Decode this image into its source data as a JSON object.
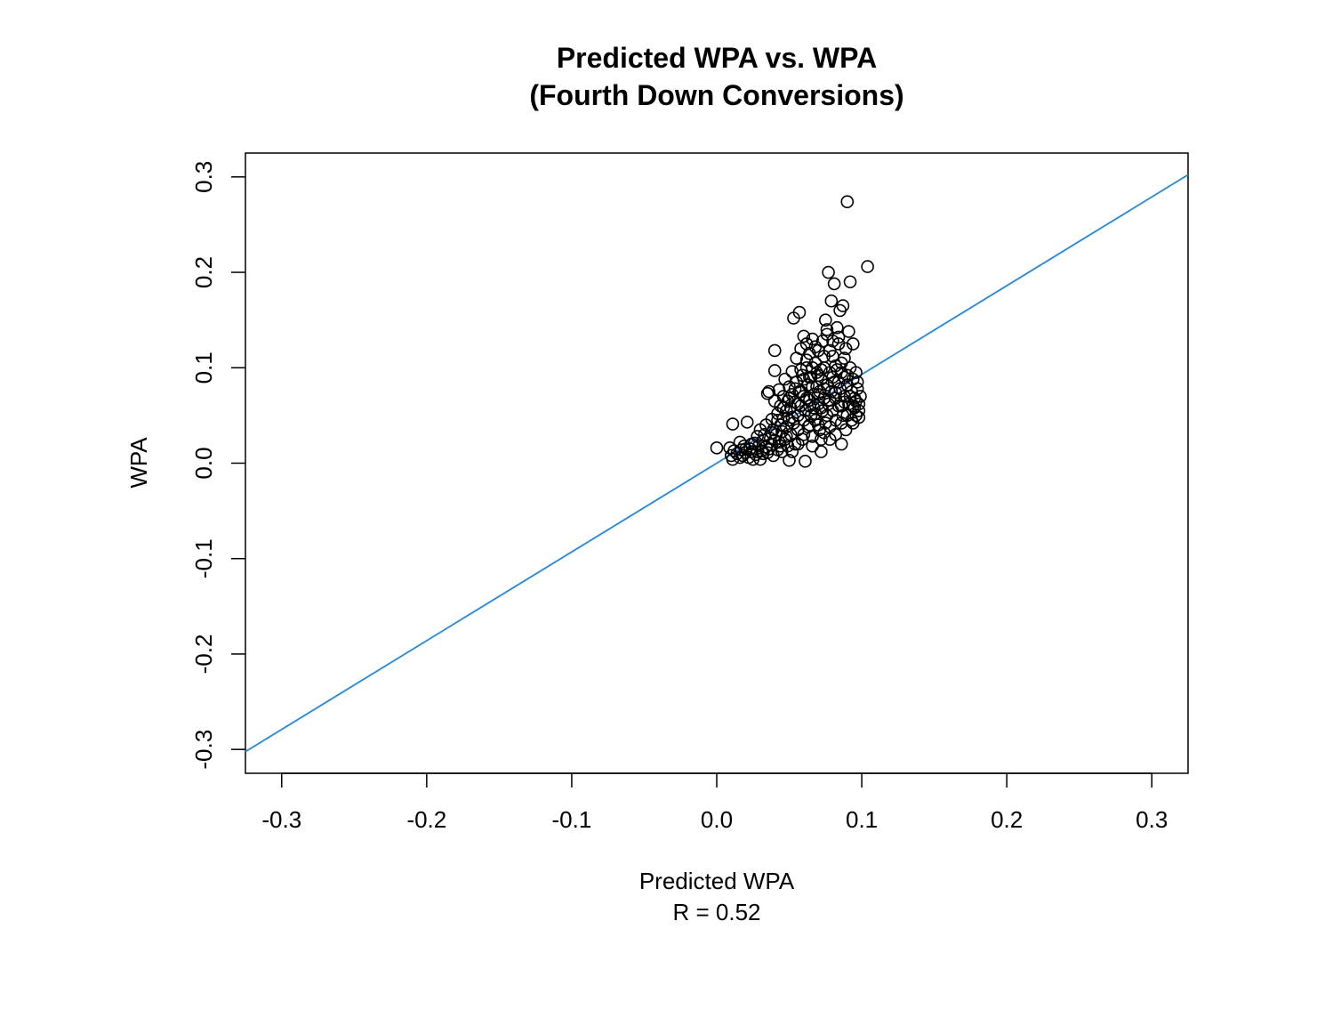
{
  "chart_data": {
    "type": "scatter",
    "title_line1": "Predicted WPA vs. WPA",
    "title_line2": "(Fourth Down Conversions)",
    "xlabel": "Predicted WPA",
    "xlabel_sub": "R = 0.52",
    "ylabel": "WPA",
    "xlim": [
      -0.325,
      0.325
    ],
    "ylim": [
      -0.325,
      0.325
    ],
    "xticks": [
      -0.3,
      -0.2,
      -0.1,
      0.0,
      0.1,
      0.2,
      0.3
    ],
    "yticks": [
      -0.3,
      -0.2,
      -0.1,
      0.0,
      0.1,
      0.2,
      0.3
    ],
    "xtick_labels": [
      "-0.3",
      "-0.2",
      "-0.1",
      "0.0",
      "0.1",
      "0.2",
      "0.3"
    ],
    "ytick_labels": [
      "-0.3",
      "-0.2",
      "-0.1",
      "0.0",
      "0.1",
      "0.2",
      "0.3"
    ],
    "reference_line": {
      "intercept": 0.0,
      "slope": 0.93,
      "color": "#1E88E5"
    },
    "point_color": "#000000",
    "points": [
      [
        0.0,
        0.016
      ],
      [
        0.009,
        0.016
      ],
      [
        0.01,
        0.008
      ],
      [
        0.011,
        0.004
      ],
      [
        0.011,
        0.041
      ],
      [
        0.012,
        0.013
      ],
      [
        0.014,
        0.01
      ],
      [
        0.016,
        0.022
      ],
      [
        0.017,
        0.014
      ],
      [
        0.018,
        0.008
      ],
      [
        0.019,
        0.018
      ],
      [
        0.02,
        0.011
      ],
      [
        0.021,
        0.043
      ],
      [
        0.022,
        0.006
      ],
      [
        0.023,
        0.015
      ],
      [
        0.024,
        0.012
      ],
      [
        0.025,
        0.004
      ],
      [
        0.026,
        0.021
      ],
      [
        0.027,
        0.009
      ],
      [
        0.028,
        0.028
      ],
      [
        0.029,
        0.018
      ],
      [
        0.03,
        0.004
      ],
      [
        0.03,
        0.035
      ],
      [
        0.031,
        0.013
      ],
      [
        0.032,
        0.024
      ],
      [
        0.033,
        0.03
      ],
      [
        0.034,
        0.017
      ],
      [
        0.034,
        0.04
      ],
      [
        0.035,
        0.011
      ],
      [
        0.035,
        0.073
      ],
      [
        0.036,
        0.075
      ],
      [
        0.037,
        0.026
      ],
      [
        0.038,
        0.019
      ],
      [
        0.038,
        0.046
      ],
      [
        0.039,
        0.008
      ],
      [
        0.039,
        0.035
      ],
      [
        0.04,
        0.065
      ],
      [
        0.04,
        0.097
      ],
      [
        0.04,
        0.118
      ],
      [
        0.041,
        0.03
      ],
      [
        0.042,
        0.014
      ],
      [
        0.042,
        0.052
      ],
      [
        0.043,
        0.022
      ],
      [
        0.043,
        0.077
      ],
      [
        0.044,
        0.04
      ],
      [
        0.044,
        0.06
      ],
      [
        0.045,
        0.012
      ],
      [
        0.045,
        0.033
      ],
      [
        0.046,
        0.047
      ],
      [
        0.046,
        0.07
      ],
      [
        0.047,
        0.025
      ],
      [
        0.047,
        0.088
      ],
      [
        0.048,
        0.055
      ],
      [
        0.048,
        0.038
      ],
      [
        0.049,
        0.018
      ],
      [
        0.049,
        0.065
      ],
      [
        0.05,
        0.045
      ],
      [
        0.05,
        0.08
      ],
      [
        0.05,
        0.003
      ],
      [
        0.051,
        0.03
      ],
      [
        0.051,
        0.058
      ],
      [
        0.052,
        0.096
      ],
      [
        0.052,
        0.072
      ],
      [
        0.053,
        0.152
      ],
      [
        0.053,
        0.042
      ],
      [
        0.054,
        0.02
      ],
      [
        0.054,
        0.064
      ],
      [
        0.055,
        0.11
      ],
      [
        0.055,
        0.085
      ],
      [
        0.056,
        0.05
      ],
      [
        0.056,
        0.035
      ],
      [
        0.057,
        0.075
      ],
      [
        0.057,
        0.158
      ],
      [
        0.058,
        0.12
      ],
      [
        0.058,
        0.06
      ],
      [
        0.059,
        0.025
      ],
      [
        0.059,
        0.092
      ],
      [
        0.06,
        0.133
      ],
      [
        0.06,
        0.045
      ],
      [
        0.06,
        0.07
      ],
      [
        0.061,
        0.002
      ],
      [
        0.061,
        0.055
      ],
      [
        0.062,
        0.1
      ],
      [
        0.062,
        0.125
      ],
      [
        0.063,
        0.082
      ],
      [
        0.063,
        0.038
      ],
      [
        0.064,
        0.066
      ],
      [
        0.064,
        0.115
      ],
      [
        0.065,
        0.05
      ],
      [
        0.065,
        0.09
      ],
      [
        0.066,
        0.028
      ],
      [
        0.066,
        0.13
      ],
      [
        0.067,
        0.072
      ],
      [
        0.067,
        0.058
      ],
      [
        0.068,
        0.105
      ],
      [
        0.068,
        0.045
      ],
      [
        0.069,
        0.08
      ],
      [
        0.069,
        0.095
      ],
      [
        0.07,
        0.062
      ],
      [
        0.07,
        0.118
      ],
      [
        0.071,
        0.035
      ],
      [
        0.071,
        0.075
      ],
      [
        0.072,
        0.088
      ],
      [
        0.072,
        0.012
      ],
      [
        0.073,
        0.128
      ],
      [
        0.073,
        0.055
      ],
      [
        0.074,
        0.068
      ],
      [
        0.074,
        0.1
      ],
      [
        0.075,
        0.15
      ],
      [
        0.075,
        0.042
      ],
      [
        0.076,
        0.082
      ],
      [
        0.076,
        0.14
      ],
      [
        0.077,
        0.062
      ],
      [
        0.077,
        0.2
      ],
      [
        0.078,
        0.095
      ],
      [
        0.078,
        0.025
      ],
      [
        0.079,
        0.17
      ],
      [
        0.079,
        0.075
      ],
      [
        0.08,
        0.055
      ],
      [
        0.08,
        0.112
      ],
      [
        0.081,
        0.188
      ],
      [
        0.081,
        0.085
      ],
      [
        0.082,
        0.045
      ],
      [
        0.082,
        0.068
      ],
      [
        0.083,
        0.142
      ],
      [
        0.083,
        0.098
      ],
      [
        0.084,
        0.06
      ],
      [
        0.084,
        0.125
      ],
      [
        0.085,
        0.16
      ],
      [
        0.085,
        0.078
      ],
      [
        0.086,
        0.02
      ],
      [
        0.086,
        0.105
      ],
      [
        0.087,
        0.165
      ],
      [
        0.087,
        0.05
      ],
      [
        0.088,
        0.09
      ],
      [
        0.088,
        0.07
      ],
      [
        0.089,
        0.12
      ],
      [
        0.089,
        0.035
      ],
      [
        0.09,
        0.274
      ],
      [
        0.09,
        0.082
      ],
      [
        0.091,
        0.138
      ],
      [
        0.091,
        0.062
      ],
      [
        0.092,
        0.19
      ],
      [
        0.092,
        0.1
      ],
      [
        0.093,
        0.075
      ],
      [
        0.093,
        0.045
      ],
      [
        0.094,
        0.088
      ],
      [
        0.094,
        0.125
      ],
      [
        0.095,
        0.058
      ],
      [
        0.095,
        0.068
      ],
      [
        0.096,
        0.095
      ],
      [
        0.096,
        0.05
      ],
      [
        0.097,
        0.078
      ],
      [
        0.097,
        0.085
      ],
      [
        0.098,
        0.062
      ],
      [
        0.098,
        0.055
      ],
      [
        0.099,
        0.07
      ],
      [
        0.104,
        0.206
      ],
      [
        0.058,
        0.075
      ],
      [
        0.062,
        0.068
      ],
      [
        0.066,
        0.08
      ],
      [
        0.07,
        0.072
      ],
      [
        0.074,
        0.078
      ],
      [
        0.078,
        0.066
      ],
      [
        0.082,
        0.074
      ],
      [
        0.086,
        0.06
      ],
      [
        0.088,
        0.064
      ],
      [
        0.064,
        0.06
      ],
      [
        0.068,
        0.052
      ],
      [
        0.072,
        0.058
      ],
      [
        0.076,
        0.05
      ],
      [
        0.08,
        0.09
      ],
      [
        0.084,
        0.085
      ],
      [
        0.06,
        0.088
      ],
      [
        0.056,
        0.062
      ],
      [
        0.052,
        0.048
      ],
      [
        0.048,
        0.028
      ],
      [
        0.044,
        0.018
      ],
      [
        0.04,
        0.024
      ],
      [
        0.036,
        0.015
      ],
      [
        0.032,
        0.01
      ],
      [
        0.028,
        0.012
      ],
      [
        0.024,
        0.02
      ],
      [
        0.02,
        0.015
      ],
      [
        0.016,
        0.006
      ],
      [
        0.062,
        0.108
      ],
      [
        0.066,
        0.1
      ],
      [
        0.07,
        0.092
      ],
      [
        0.074,
        0.112
      ],
      [
        0.078,
        0.118
      ],
      [
        0.082,
        0.102
      ],
      [
        0.086,
        0.095
      ],
      [
        0.09,
        0.092
      ],
      [
        0.092,
        0.07
      ],
      [
        0.094,
        0.06
      ],
      [
        0.096,
        0.065
      ],
      [
        0.05,
        0.068
      ],
      [
        0.054,
        0.078
      ],
      [
        0.058,
        0.098
      ],
      [
        0.046,
        0.058
      ],
      [
        0.042,
        0.045
      ],
      [
        0.038,
        0.032
      ],
      [
        0.07,
        0.04
      ],
      [
        0.074,
        0.032
      ],
      [
        0.078,
        0.038
      ],
      [
        0.082,
        0.03
      ],
      [
        0.086,
        0.042
      ],
      [
        0.09,
        0.05
      ],
      [
        0.094,
        0.042
      ],
      [
        0.098,
        0.048
      ],
      [
        0.064,
        0.04
      ],
      [
        0.06,
        0.03
      ],
      [
        0.056,
        0.02
      ],
      [
        0.052,
        0.012
      ],
      [
        0.066,
        0.018
      ],
      [
        0.072,
        0.025
      ],
      [
        0.076,
        0.135
      ],
      [
        0.08,
        0.128
      ],
      [
        0.084,
        0.132
      ],
      [
        0.088,
        0.11
      ],
      [
        0.068,
        0.122
      ],
      [
        0.064,
        0.09
      ],
      [
        0.072,
        0.098
      ]
    ]
  }
}
